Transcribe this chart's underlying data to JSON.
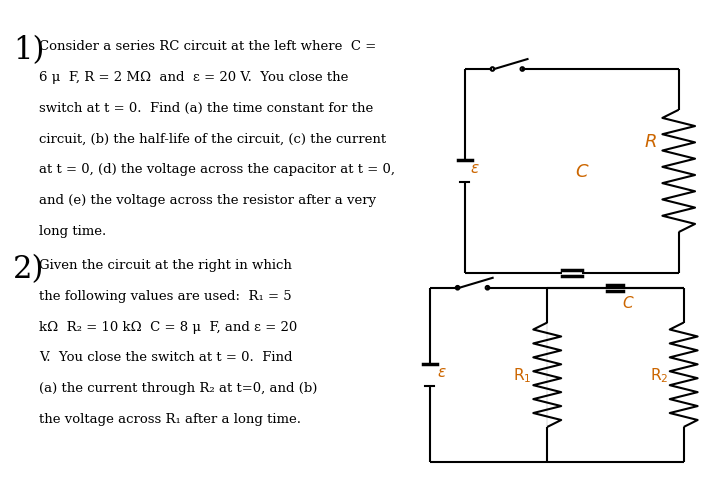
{
  "title": "",
  "bg_color": "#ffffff",
  "text_color": "#000000",
  "circuit_color": "#000000",
  "label_color": "#cc6600",
  "fig_width": 7.06,
  "fig_height": 4.89,
  "problem1_text": [
    "Consider a series RC circuit at the left where  C =",
    "6 μ  F, R = 2 MΩ  and  ε = 20 V.  You close the",
    "switch at t = 0.  Find (a) the time constant for the",
    "circuit, (b) the half-life of the circuit, (c) the current",
    "at t = 0, (d) the voltage across the capacitor at t = 0,",
    "and (e) the voltage across the resistor after a very",
    "long time."
  ],
  "problem2_text": [
    "Given the circuit at the right in which",
    "the following values are used:  R₁ = 5",
    "kΩ  R₂ = 10 kΩ  C = 8 μ  F, and ε = 20",
    "V.  You close the switch at t = 0.  Find",
    "(a) the current through R₂ at t=0, and (b)",
    "the voltage across R₁ after a long time."
  ]
}
